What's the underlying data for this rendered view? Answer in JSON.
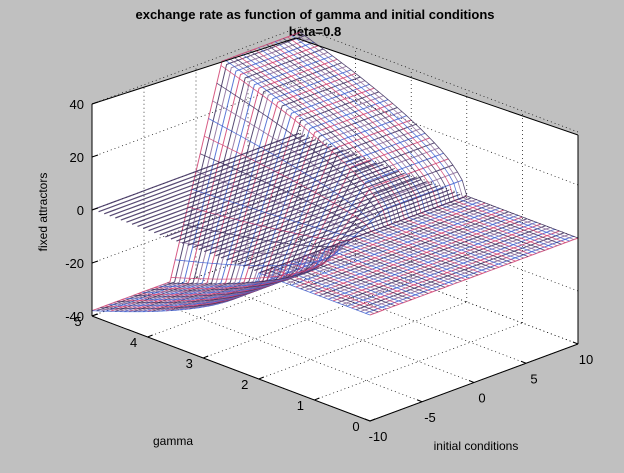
{
  "chart_data": {
    "type": "surface",
    "title": "exchange rate as function of gamma and initial conditions",
    "subtitle": "beta=0.8",
    "xlabel": "initial conditions",
    "ylabel": "gamma",
    "zlabel": "fixed attractors",
    "xlim": [
      -10,
      10
    ],
    "ylim": [
      0,
      5
    ],
    "zlim": [
      -40,
      40
    ],
    "xticks": [
      "-10",
      "-5",
      "0",
      "5",
      "10"
    ],
    "yticks": [
      "0",
      "1",
      "2",
      "3",
      "4",
      "5"
    ],
    "zticks": [
      "-40",
      "-20",
      "0",
      "20",
      "40"
    ],
    "grid": true,
    "surface": {
      "description": "upper and lower attractor sheets (±) meeting at a fold near gamma≈2 and initial condition≈0",
      "upper_sheet_at_gamma_5": 38,
      "lower_sheet_at_gamma_5": -38,
      "fold_gamma": 2,
      "middle_band_value": 0
    },
    "colors": {
      "background": "#c0c0c0",
      "plot_area": "#ffffff",
      "mesh_colors": [
        "#d04070",
        "#4060d0",
        "#8a6a9a",
        "#3a2a5a"
      ]
    }
  }
}
